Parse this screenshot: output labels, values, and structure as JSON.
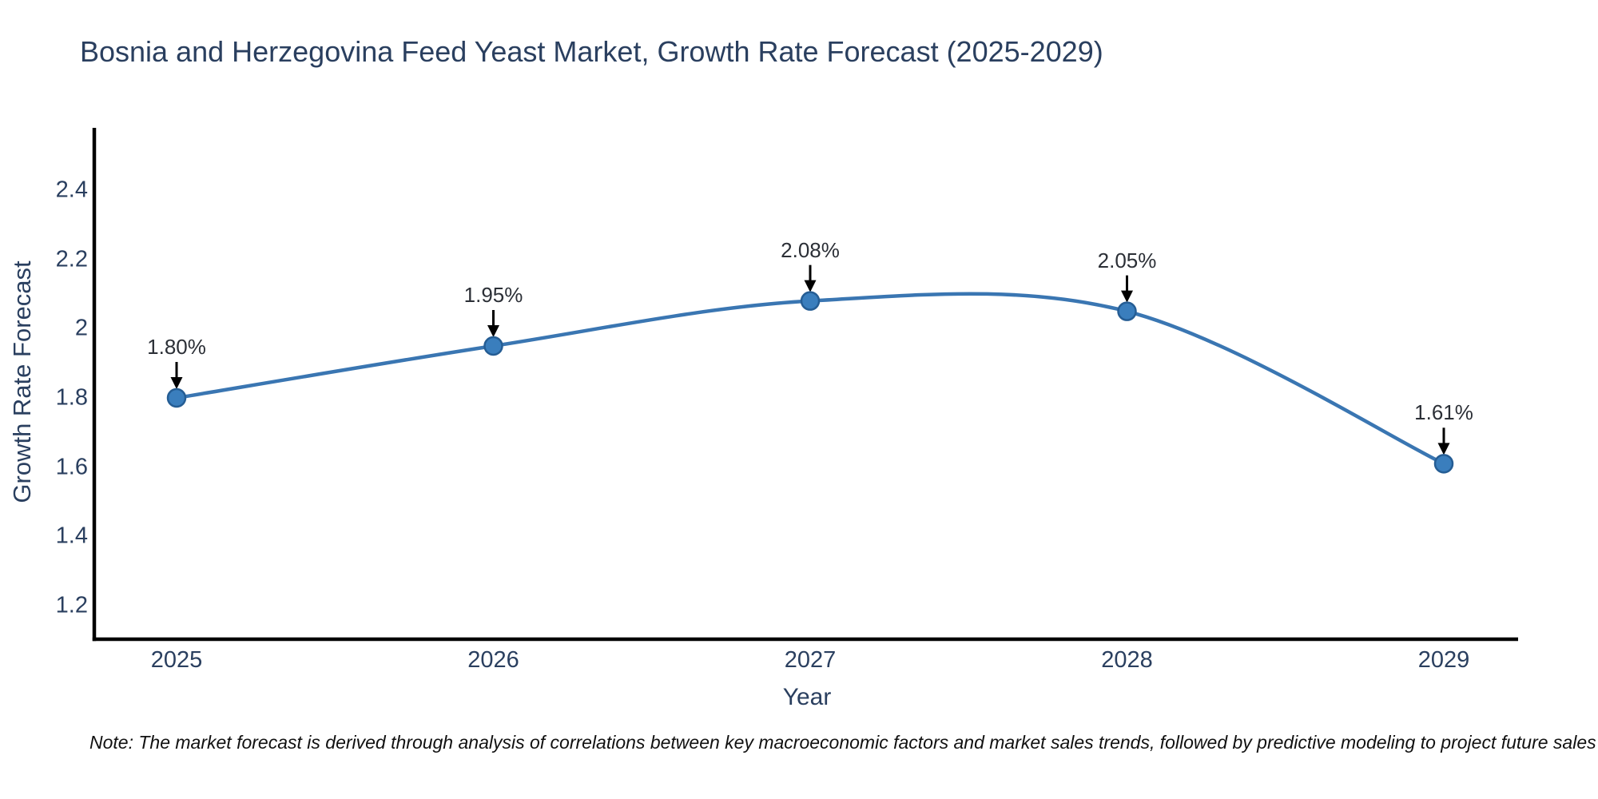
{
  "title": "Bosnia and Herzegovina Feed Yeast Market, Growth Rate Forecast (2025-2029)",
  "note": "Note: The market forecast is derived through analysis of correlations between key macroeconomic factors and market sales trends, followed by predictive modeling to project future sales",
  "chart_data": {
    "type": "line",
    "title": "Bosnia and Herzegovina Feed Yeast Market, Growth Rate Forecast (2025-2029)",
    "xlabel": "Year",
    "ylabel": "Growth Rate Forecast",
    "line_shape": "spline",
    "grid": false,
    "legend": false,
    "x": [
      2025,
      2026,
      2027,
      2028,
      2029
    ],
    "x_tick_labels": [
      "2025",
      "2026",
      "2027",
      "2028",
      "2029"
    ],
    "series": [
      {
        "name": "Growth Rate Forecast",
        "values": [
          1.8,
          1.95,
          2.08,
          2.05,
          1.61
        ]
      }
    ],
    "point_labels": [
      "1.80%",
      "1.95%",
      "2.08%",
      "2.05%",
      "1.61%"
    ],
    "y_ticks": [
      2.4,
      2.2,
      2.0,
      1.8,
      1.6,
      1.4,
      1.2
    ],
    "y_tick_labels": [
      "2.4",
      "2.2",
      "2",
      "1.8",
      "1.6",
      "1.4",
      "1.2"
    ],
    "ylim": [
      1.1,
      2.58
    ],
    "colors": {
      "line": "#3a76b2",
      "marker_fill": "#3a7ebd",
      "marker_edge": "#255d94",
      "arrow": "#000000",
      "axis_line": "#000000",
      "text": "#2a3f5f",
      "annotation_text": "#2b2f36",
      "background": "#ffffff"
    }
  }
}
